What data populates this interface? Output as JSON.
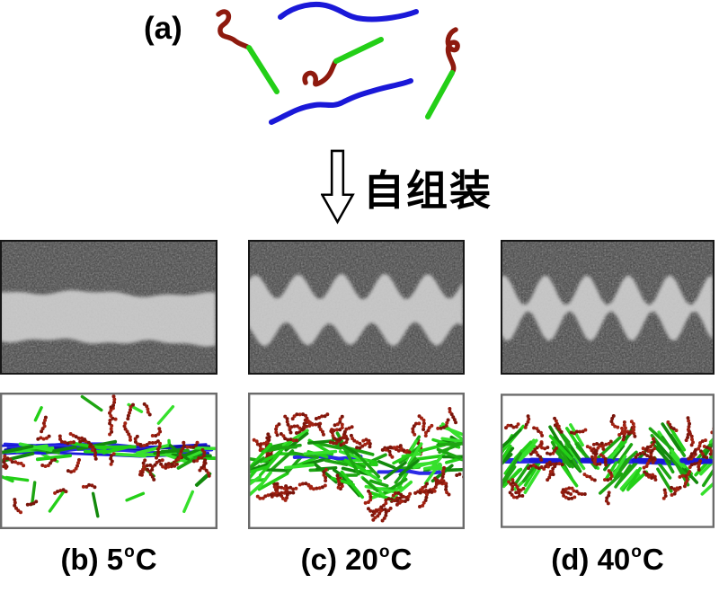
{
  "figure": {
    "panel_a": {
      "label": "(a)"
    },
    "process_arrow": {
      "label": "自组装",
      "direction": "down"
    },
    "colors": {
      "rod_green": "#23cf17",
      "coil_red": "#8e1a0e",
      "backbone_blue": "#1a18d8",
      "sem_background": "#3f3f3f",
      "sem_fiber": "#c6c6c6",
      "sem_border": "#161616",
      "sim_border": "#6b6b6b",
      "text": "#000000"
    },
    "columns": [
      {
        "id": "b",
        "caption": {
          "prefix": "(b) 5",
          "degree": "o",
          "unit": "C"
        },
        "temperature": "5°C",
        "sem_morphology": "smooth",
        "sim_state": "dilute"
      },
      {
        "id": "c",
        "caption": {
          "prefix": "(c) 20",
          "degree": "o",
          "unit": "C"
        },
        "temperature": "20°C",
        "sem_morphology": "wavy",
        "sim_state": "wavy"
      },
      {
        "id": "d",
        "caption": {
          "prefix": "(d) 40",
          "degree": "o",
          "unit": "C"
        },
        "temperature": "40°C",
        "sem_morphology": "beaded",
        "sim_state": "beaded"
      }
    ]
  }
}
